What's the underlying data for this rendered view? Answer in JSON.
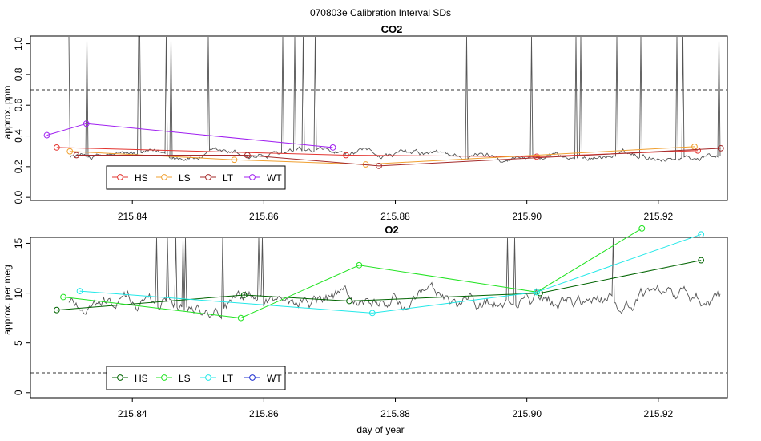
{
  "title": "070803e   Calibration Interval SDs",
  "xlabel": "day of year",
  "colors": {
    "trace": "#555555",
    "co2": {
      "HS": "#e3342f",
      "LS": "#f0a030",
      "LT": "#a52a2a",
      "WT": "#a020f0"
    },
    "o2": {
      "HS": "#006400",
      "LS": "#22e322",
      "LT": "#22e8e8",
      "WT": "#1f2fd0"
    }
  },
  "chart_data": [
    {
      "type": "line",
      "title": "CO2",
      "xlabel": "",
      "ylabel": "approx. ppm",
      "xlim": [
        215.8245,
        215.9305
      ],
      "ylim": [
        -0.02,
        1.05
      ],
      "xticks": [
        215.84,
        215.86,
        215.88,
        215.9,
        215.92
      ],
      "xtick_labels": [
        "215.84",
        "215.86",
        "215.88",
        "215.90",
        "215.92"
      ],
      "yticks": [
        0.0,
        0.2,
        0.4,
        0.6,
        0.8,
        1.0
      ],
      "ytick_labels": [
        "0.0",
        "0.2",
        "0.4",
        "0.6",
        "0.8",
        "1.0"
      ],
      "threshold": 0.7,
      "legend_position": "bottom-left",
      "series": [
        {
          "name": "HS",
          "x": [
            215.8285,
            215.8725,
            215.9015,
            215.926
          ],
          "y": [
            0.325,
            0.275,
            0.265,
            0.305
          ]
        },
        {
          "name": "LS",
          "x": [
            215.8305,
            215.8555,
            215.8755,
            215.9255
          ],
          "y": [
            0.3,
            0.245,
            0.215,
            0.33
          ]
        },
        {
          "name": "LT",
          "x": [
            215.8315,
            215.8575,
            215.8775,
            215.9295
          ],
          "y": [
            0.275,
            0.275,
            0.205,
            0.32
          ]
        },
        {
          "name": "WT",
          "x": [
            215.827,
            215.833,
            215.8705
          ],
          "y": [
            0.405,
            0.48,
            0.325
          ]
        }
      ]
    },
    {
      "type": "line",
      "title": "O2",
      "xlabel": "day of year",
      "ylabel": "approx. per meg",
      "xlim": [
        215.8245,
        215.9305
      ],
      "ylim": [
        -0.5,
        15.6
      ],
      "xticks": [
        215.84,
        215.86,
        215.88,
        215.9,
        215.92
      ],
      "xtick_labels": [
        "215.84",
        "215.86",
        "215.88",
        "215.90",
        "215.92"
      ],
      "yticks": [
        0,
        5,
        10,
        15
      ],
      "ytick_labels": [
        "0",
        "5",
        "10",
        "15"
      ],
      "threshold": 2,
      "legend_position": "bottom-left",
      "series": [
        {
          "name": "HS",
          "x": [
            215.8285,
            215.857,
            215.873,
            215.902,
            215.9265
          ],
          "y": [
            8.3,
            9.8,
            9.2,
            10.0,
            13.3
          ]
        },
        {
          "name": "LS",
          "x": [
            215.8295,
            215.8565,
            215.8745,
            215.9015,
            215.9175
          ],
          "y": [
            9.6,
            7.5,
            12.8,
            10.1,
            16.5
          ]
        },
        {
          "name": "LT",
          "x": [
            215.832,
            215.8765,
            215.9015,
            215.9265
          ],
          "y": [
            10.2,
            8.0,
            10.1,
            15.9
          ]
        },
        {
          "name": "WT",
          "x": [],
          "y": []
        }
      ]
    }
  ]
}
